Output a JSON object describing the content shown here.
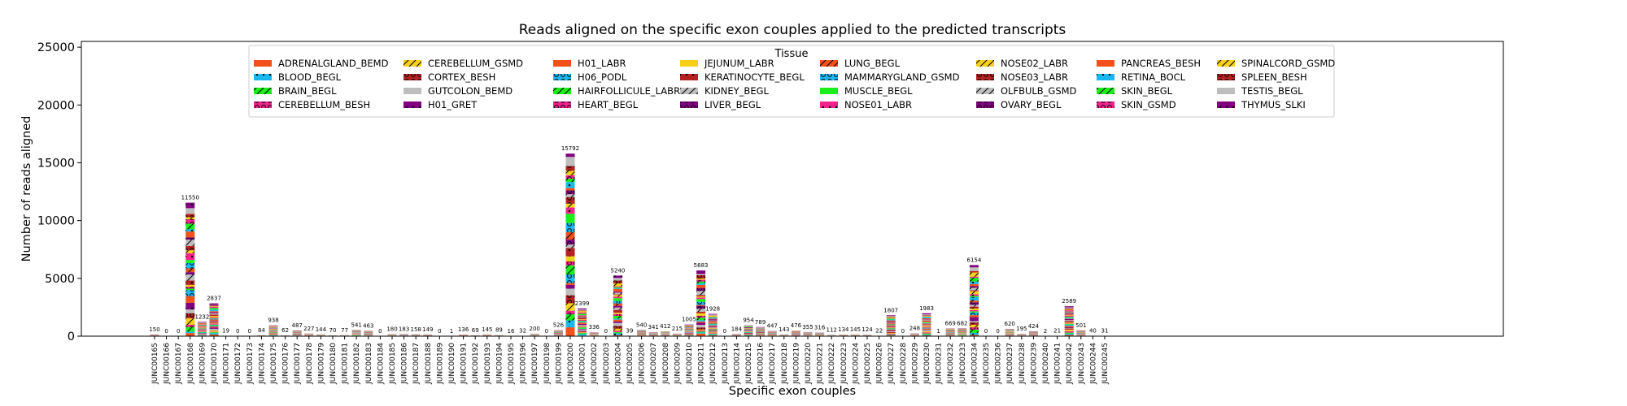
{
  "chart_data": {
    "type": "bar",
    "stacked": true,
    "title": "Reads aligned on the specific exon couples applied to the predicted transcripts",
    "xlabel": "Specific exon couples",
    "ylabel": "Number of reads aligned",
    "ylim": [
      0,
      25500
    ],
    "yticks": [
      "0",
      "5000",
      "10000",
      "15000",
      "20000",
      "25000"
    ],
    "legend_title": "Tissue",
    "legend_placement": "top-center",
    "grid": false,
    "categories": [
      "JUNC00165",
      "JUNC00166",
      "JUNC00167",
      "JUNC00168",
      "JUNC00169",
      "JUNC00170",
      "JUNC00171",
      "JUNC00172",
      "JUNC00173",
      "JUNC00174",
      "JUNC00175",
      "JUNC00176",
      "JUNC00177",
      "JUNC00178",
      "JUNC00179",
      "JUNC00180",
      "JUNC00181",
      "JUNC00182",
      "JUNC00183",
      "JUNC00184",
      "JUNC00185",
      "JUNC00186",
      "JUNC00187",
      "JUNC00188",
      "JUNC00189",
      "JUNC00190",
      "JUNC00191",
      "JUNC00192",
      "JUNC00193",
      "JUNC00194",
      "JUNC00195",
      "JUNC00196",
      "JUNC00197",
      "JUNC00198",
      "JUNC00199",
      "JUNC00200",
      "JUNC00201",
      "JUNC00202",
      "JUNC00203",
      "JUNC00204",
      "JUNC00205",
      "JUNC00206",
      "JUNC00207",
      "JUNC00208",
      "JUNC00209",
      "JUNC00210",
      "JUNC00211",
      "JUNC00212",
      "JUNC00213",
      "JUNC00214",
      "JUNC00215",
      "JUNC00216",
      "JUNC00217",
      "JUNC00218",
      "JUNC00219",
      "JUNC00220",
      "JUNC00221",
      "JUNC00222",
      "JUNC00223",
      "JUNC00224",
      "JUNC00225",
      "JUNC00226",
      "JUNC00227",
      "JUNC00228",
      "JUNC00229",
      "JUNC00230",
      "JUNC00231",
      "JUNC00232",
      "JUNC00233",
      "JUNC00234",
      "JUNC00235",
      "JUNC00236",
      "JUNC00237",
      "JUNC00238",
      "JUNC00239",
      "JUNC00240",
      "JUNC00241",
      "JUNC00242",
      "JUNC00243",
      "JUNC00244",
      "JUNC00245"
    ],
    "totals": [
      150,
      0,
      0,
      11550,
      1232,
      2837,
      19,
      0,
      0,
      84,
      938,
      62,
      487,
      227,
      144,
      70,
      77,
      541,
      463,
      0,
      180,
      183,
      158,
      149,
      0,
      1,
      136,
      69,
      145,
      89,
      16,
      32,
      200,
      0,
      526,
      15792,
      2399,
      336,
      0,
      5240,
      39,
      540,
      341,
      412,
      215,
      1005,
      5683,
      1928,
      0,
      184,
      954,
      789,
      447,
      143,
      476,
      355,
      316,
      112,
      134,
      145,
      124,
      22,
      1807,
      0,
      248,
      1983,
      1,
      669,
      682,
      6154,
      0,
      0,
      620,
      195,
      424,
      2,
      21,
      2589,
      501,
      40,
      31
    ],
    "series_names": [
      "ADRENALGLAND_BEMD",
      "BLOOD_BEGL",
      "BRAIN_BEGL",
      "CEREBELLUM_BESH",
      "CEREBELLUM_GSMD",
      "CORTEX_BESH",
      "GUTCOLON_BEMD",
      "H01_GRET",
      "H01_LABR",
      "H06_PODL",
      "HAIRFOLLICULE_LABR",
      "HEART_BEGL",
      "JEJUNUM_LABR",
      "KERATINOCYTE_BEGL",
      "KIDNEY_BEGL",
      "LIVER_BEGL",
      "LUNG_BEGL",
      "MAMMARYGLAND_GSMD",
      "MUSCLE_BEGL",
      "NOSE01_LABR",
      "NOSE02_LABR",
      "NOSE03_LABR",
      "OLFBULB_GSMD",
      "OVARY_BEGL",
      "PANCREAS_BESH",
      "RETINA_BOCL",
      "SKIN_BEGL",
      "SKIN_GSMD",
      "SPINALCORD_GSMD",
      "SPLEEN_BESH",
      "TESTIS_BEGL",
      "THYMUS_SLKI"
    ],
    "series_colors": [
      "#f2511a",
      "#1ab8f0",
      "#19ee19",
      "#f0248c",
      "#f8d017",
      "#b42222",
      "#bebebe",
      "#800080",
      "#f2511a",
      "#1ab8f0",
      "#19ee19",
      "#f0248c",
      "#f8d017",
      "#b42222",
      "#bebebe",
      "#800080",
      "#f2511a",
      "#1ab8f0",
      "#19ee19",
      "#f0248c",
      "#f8d017",
      "#b42222",
      "#bebebe",
      "#800080",
      "#f2511a",
      "#1ab8f0",
      "#19ee19",
      "#f0248c",
      "#f8d017",
      "#b42222",
      "#bebebe",
      "#800080"
    ],
    "series_hatches": [
      "none",
      "dot",
      "slash",
      "circle",
      "slash",
      "circle",
      "none",
      "dot",
      "none",
      "circle",
      "slash",
      "circle",
      "none",
      "dot",
      "slash",
      "circle",
      "slash",
      "circle",
      "none",
      "dot",
      "slash",
      "circle",
      "slash",
      "circle",
      "none",
      "dot",
      "slash",
      "circle",
      "slash",
      "circle",
      "none",
      "dot"
    ]
  }
}
